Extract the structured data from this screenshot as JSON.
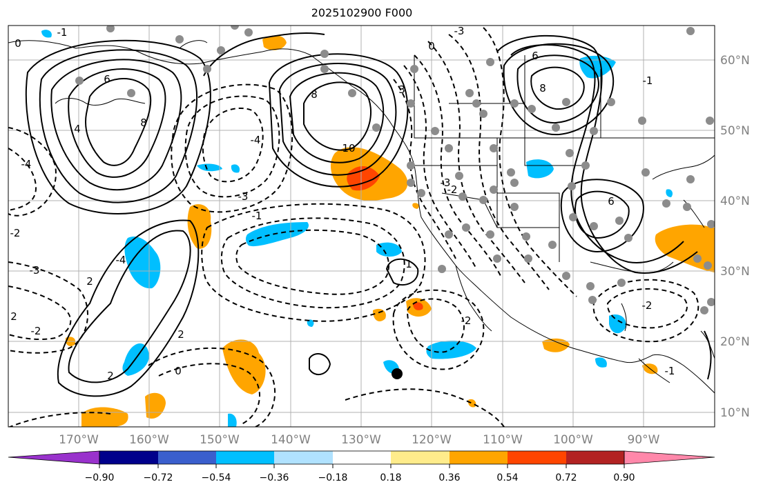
{
  "title": "2025102900 F000",
  "map": {
    "longitude_labels": [
      "170°W",
      "160°W",
      "150°W",
      "140°W",
      "130°W",
      "120°W",
      "110°W",
      "100°W",
      "90°W"
    ],
    "latitude_labels": [
      "60°N",
      "50°N",
      "40°N",
      "30°N",
      "20°N",
      "10°N"
    ],
    "contour_labels": [
      "0",
      "-1",
      "6",
      "8",
      "-4",
      "4",
      "-3",
      "-1",
      "8",
      "-4",
      "10",
      "-3",
      "3",
      "0",
      "-2",
      "-3",
      "6",
      "8",
      "6",
      "-1",
      "-3",
      "2",
      "-2",
      "0",
      "-2",
      "2",
      "-4",
      "2",
      "1",
      "-2",
      "-2",
      "2",
      "-1",
      "-2"
    ],
    "colors": {
      "grid": "#b0b0b0",
      "land": "#000000",
      "contour": "#000000",
      "positive_fill": "#ffa500",
      "strong_positive_fill": "#ff4500",
      "negative_fill": "#00bfff",
      "marker": "#8c8c8c"
    }
  },
  "colorbar": {
    "bins": [
      "#9932cc",
      "#00008b",
      "#3a5fcd",
      "#00bfff",
      "#b0e2ff",
      "#ffffff",
      "#ffec8b",
      "#ffa500",
      "#ff4500",
      "#b22222",
      "#ff88aa"
    ],
    "tick_labels": [
      "−0.90",
      "−0.72",
      "−0.54",
      "−0.36",
      "−0.18",
      "0.18",
      "0.36",
      "0.54",
      "0.72",
      "0.90"
    ]
  },
  "chart_data": {
    "type": "contour_map",
    "title": "2025102900 F000",
    "projection": "equirectangular",
    "lon_range": [
      -180,
      -80
    ],
    "lat_range": [
      8,
      65
    ],
    "shading_levels": [
      -0.9,
      -0.72,
      -0.54,
      -0.36,
      -0.18,
      0.18,
      0.36,
      0.54,
      0.72,
      0.9
    ],
    "contour_levels_labeled": [
      -4,
      -3,
      -2,
      -1,
      0,
      1,
      2,
      3,
      4,
      6,
      8,
      10
    ]
  }
}
